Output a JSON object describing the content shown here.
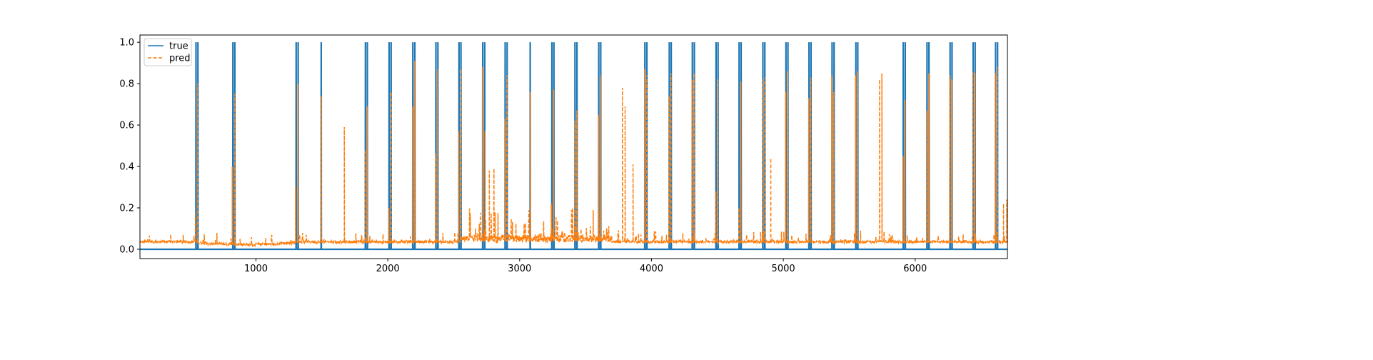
{
  "chart_data": {
    "type": "line",
    "xlim": [
      120,
      6700
    ],
    "ylim": [
      -0.045,
      1.035
    ],
    "x_ticks": [
      1000,
      2000,
      3000,
      4000,
      5000,
      6000
    ],
    "x_tick_labels": [
      "1000",
      "2000",
      "3000",
      "4000",
      "5000",
      "6000"
    ],
    "y_ticks": [
      0.0,
      0.2,
      0.4,
      0.6,
      0.8,
      1.0
    ],
    "y_tick_labels": [
      "0.0",
      "0.2",
      "0.4",
      "0.6",
      "0.8",
      "1.0"
    ],
    "legend_placement": "upper-left",
    "grid": false,
    "series": [
      {
        "name": "true",
        "style": "solid",
        "color": "#1f77b4",
        "baseline": 0.0,
        "spike_value": 1.0,
        "spike_x": [
          545,
          560,
          825,
          840,
          1305,
          1320,
          1495,
          1830,
          1845,
          2010,
          2025,
          2190,
          2205,
          2365,
          2380,
          2540,
          2555,
          2720,
          2735,
          2890,
          2905,
          3080,
          3245,
          3260,
          3420,
          3435,
          3600,
          3615,
          3950,
          3965,
          4135,
          4150,
          4310,
          4325,
          4490,
          4505,
          4665,
          4680,
          4845,
          4860,
          5020,
          5035,
          5195,
          5210,
          5370,
          5385,
          5550,
          5565,
          5910,
          5925,
          6090,
          6105,
          6265,
          6280,
          6440,
          6455,
          6610,
          6625
        ]
      },
      {
        "name": "pred",
        "style": "dashed",
        "color": "#ff7f0e",
        "baseline": 0.03,
        "peaks": [
          {
            "x": 540,
            "y": 0.17
          },
          {
            "x": 557,
            "y": 0.8
          },
          {
            "x": 820,
            "y": 0.4
          },
          {
            "x": 838,
            "y": 0.75
          },
          {
            "x": 1300,
            "y": 0.3
          },
          {
            "x": 1318,
            "y": 0.8
          },
          {
            "x": 1495,
            "y": 0.74
          },
          {
            "x": 1670,
            "y": 0.59
          },
          {
            "x": 1828,
            "y": 0.48
          },
          {
            "x": 1845,
            "y": 0.69
          },
          {
            "x": 2008,
            "y": 0.2
          },
          {
            "x": 2025,
            "y": 0.76
          },
          {
            "x": 2188,
            "y": 0.69
          },
          {
            "x": 2203,
            "y": 0.91
          },
          {
            "x": 2363,
            "y": 0.46
          },
          {
            "x": 2378,
            "y": 0.87
          },
          {
            "x": 2538,
            "y": 0.57
          },
          {
            "x": 2553,
            "y": 0.87
          },
          {
            "x": 2718,
            "y": 0.88
          },
          {
            "x": 2738,
            "y": 0.57
          },
          {
            "x": 2770,
            "y": 0.38
          },
          {
            "x": 2805,
            "y": 0.39
          },
          {
            "x": 2888,
            "y": 0.63
          },
          {
            "x": 2903,
            "y": 0.84
          },
          {
            "x": 3080,
            "y": 0.76
          },
          {
            "x": 3240,
            "y": 0.22
          },
          {
            "x": 3258,
            "y": 0.77
          },
          {
            "x": 3418,
            "y": 0.62
          },
          {
            "x": 3433,
            "y": 0.67
          },
          {
            "x": 3598,
            "y": 0.65
          },
          {
            "x": 3613,
            "y": 0.84
          },
          {
            "x": 3780,
            "y": 0.78
          },
          {
            "x": 3800,
            "y": 0.69
          },
          {
            "x": 3860,
            "y": 0.41
          },
          {
            "x": 3948,
            "y": 0.87
          },
          {
            "x": 3963,
            "y": 0.84
          },
          {
            "x": 4133,
            "y": 0.74
          },
          {
            "x": 4148,
            "y": 0.85
          },
          {
            "x": 4308,
            "y": 0.82
          },
          {
            "x": 4323,
            "y": 0.85
          },
          {
            "x": 4488,
            "y": 0.28
          },
          {
            "x": 4503,
            "y": 0.82
          },
          {
            "x": 4663,
            "y": 0.2
          },
          {
            "x": 4678,
            "y": 0.81
          },
          {
            "x": 4843,
            "y": 0.82
          },
          {
            "x": 4858,
            "y": 0.83
          },
          {
            "x": 4905,
            "y": 0.44
          },
          {
            "x": 5018,
            "y": 0.76
          },
          {
            "x": 5033,
            "y": 0.86
          },
          {
            "x": 5193,
            "y": 0.73
          },
          {
            "x": 5208,
            "y": 0.83
          },
          {
            "x": 5368,
            "y": 0.84
          },
          {
            "x": 5383,
            "y": 0.76
          },
          {
            "x": 5548,
            "y": 0.84
          },
          {
            "x": 5563,
            "y": 0.86
          },
          {
            "x": 5730,
            "y": 0.82
          },
          {
            "x": 5748,
            "y": 0.85
          },
          {
            "x": 5908,
            "y": 0.45
          },
          {
            "x": 5923,
            "y": 0.72
          },
          {
            "x": 6088,
            "y": 0.67
          },
          {
            "x": 6103,
            "y": 0.85
          },
          {
            "x": 6263,
            "y": 0.84
          },
          {
            "x": 6278,
            "y": 0.82
          },
          {
            "x": 6438,
            "y": 0.86
          },
          {
            "x": 6453,
            "y": 0.85
          },
          {
            "x": 6608,
            "y": 0.85
          },
          {
            "x": 6623,
            "y": 0.88
          },
          {
            "x": 6670,
            "y": 0.22
          },
          {
            "x": 6695,
            "y": 0.24
          }
        ]
      }
    ]
  }
}
